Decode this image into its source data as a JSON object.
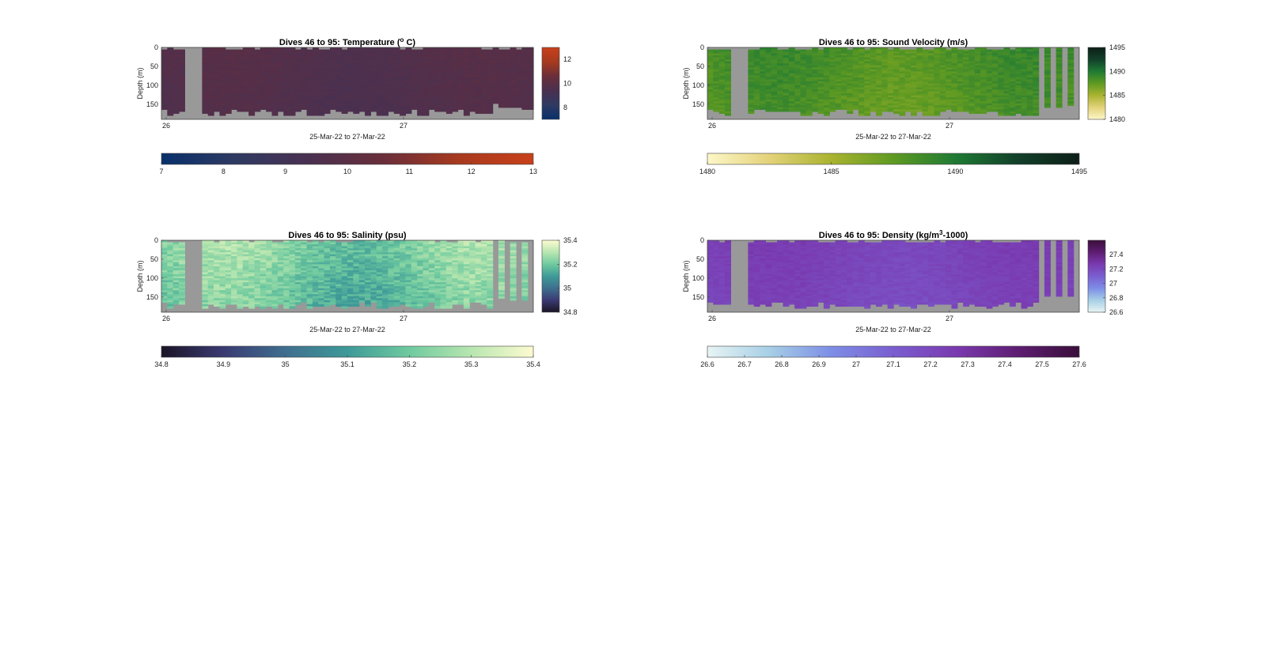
{
  "chart_data": [
    {
      "type": "heatmap",
      "id": "temperature",
      "title": "Dives 46 to 95: Temperature (",
      "title_sup": "o",
      "title_suffix": " C)",
      "ylabel": "Depth (m)",
      "xlabel": "25-Mar-22 to 27-Mar-22",
      "x_ticks": [
        "26",
        "27"
      ],
      "y_ticks": [
        "0",
        "50",
        "100",
        "150"
      ],
      "ylim": [
        0,
        190
      ],
      "y_reversed": true,
      "colormap": [
        "#08306b",
        "#2f3a62",
        "#4a3050",
        "#6a2e3a",
        "#a83a1e",
        "#c8401a"
      ],
      "colorbar_right": {
        "range": [
          7,
          13
        ],
        "ticks": [
          "8",
          "10",
          "12"
        ]
      },
      "colorbar_bottom": {
        "range": [
          7,
          13
        ],
        "ticks": [
          "7",
          "8",
          "9",
          "10",
          "11",
          "12",
          "13"
        ]
      },
      "value_range": [
        9.3,
        10.1
      ]
    },
    {
      "type": "heatmap",
      "id": "sound-velocity",
      "title": "Dives 46 to 95: Sound Velocity (m/s)",
      "title_sup": "",
      "title_suffix": "",
      "ylabel": "Depth (m)",
      "xlabel": "25-Mar-22 to 27-Mar-22",
      "x_ticks": [
        "26",
        "27"
      ],
      "y_ticks": [
        "0",
        "50",
        "100",
        "150"
      ],
      "ylim": [
        0,
        190
      ],
      "y_reversed": true,
      "colormap": [
        "#fdf7c8",
        "#e3d27a",
        "#a9b330",
        "#5f9a22",
        "#1f7a34",
        "#12402a",
        "#0d1f17"
      ],
      "colorbar_right": {
        "range": [
          1480,
          1495
        ],
        "ticks": [
          "1480",
          "1485",
          "1490",
          "1495"
        ]
      },
      "colorbar_bottom": {
        "range": [
          1480,
          1495
        ],
        "ticks": [
          "1480",
          "1485",
          "1490",
          "1495"
        ]
      },
      "value_range": [
        1486.5,
        1490
      ]
    },
    {
      "type": "heatmap",
      "id": "salinity",
      "title": "Dives 46 to 95: Salinity (psu)",
      "title_sup": "",
      "title_suffix": "",
      "ylabel": "Depth (m)",
      "xlabel": "25-Mar-22 to 27-Mar-22",
      "x_ticks": [
        "26",
        "27"
      ],
      "y_ticks": [
        "0",
        "50",
        "100",
        "150"
      ],
      "ylim": [
        0,
        190
      ],
      "y_reversed": true,
      "colormap": [
        "#1b1526",
        "#3a3a73",
        "#3f6f8e",
        "#3e9a98",
        "#6fca9f",
        "#b8e6b0",
        "#fdfbd0"
      ],
      "colorbar_right": {
        "range": [
          34.8,
          35.4
        ],
        "ticks": [
          "34.8",
          "35",
          "35.2",
          "35.4"
        ]
      },
      "colorbar_bottom": {
        "range": [
          34.8,
          35.4
        ],
        "ticks": [
          "34.8",
          "34.9",
          "35",
          "35.1",
          "35.2",
          "35.3",
          "35.4"
        ]
      },
      "value_range": [
        35.08,
        35.36
      ]
    },
    {
      "type": "heatmap",
      "id": "density",
      "title": "Dives 46 to 95: Density (kg/m",
      "title_sup": "3",
      "title_suffix": "-1000)",
      "ylabel": "Depth (m)",
      "xlabel": "25-Mar-22 to 27-Mar-22",
      "x_ticks": [
        "26",
        "27"
      ],
      "y_ticks": [
        "0",
        "50",
        "100",
        "150"
      ],
      "ylim": [
        0,
        190
      ],
      "y_reversed": true,
      "colormap": [
        "#e8f4f4",
        "#a6cfe6",
        "#7d8ee6",
        "#7a5ed0",
        "#7a3ab0",
        "#5e1d72",
        "#3a0f3a"
      ],
      "colorbar_right": {
        "range": [
          26.6,
          27.6
        ],
        "ticks": [
          "26.6",
          "26.8",
          "27",
          "27.2",
          "27.4"
        ]
      },
      "colorbar_bottom": {
        "range": [
          26.6,
          27.6
        ],
        "ticks": [
          "26.6",
          "26.7",
          "26.8",
          "26.9",
          "27",
          "27.1",
          "27.2",
          "27.3",
          "27.4",
          "27.5",
          "27.6"
        ]
      },
      "value_range": [
        27.15,
        27.3
      ]
    }
  ]
}
